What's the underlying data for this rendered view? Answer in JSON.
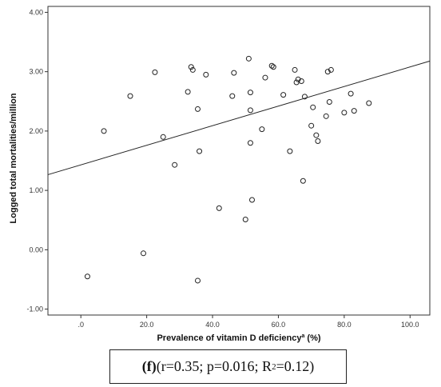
{
  "chart_data": {
    "type": "scatter",
    "xlabel": "Prevalence of vitamin D deficiency",
    "xlabel_sup": "a",
    "xlabel_unit": "(%)",
    "ylabel": "Logged total mortalities/million",
    "xlim": [
      -10,
      106
    ],
    "ylim": [
      -1.1,
      4.1
    ],
    "x_ticks": [
      0,
      20,
      40,
      60,
      80,
      100
    ],
    "x_tick_labels": [
      ".0",
      "20.0",
      "40.0",
      "60.0",
      "80.0",
      "100.0"
    ],
    "y_ticks": [
      -1,
      0,
      1,
      2,
      3,
      4
    ],
    "y_tick_labels": [
      "-1.00",
      "0.00",
      "1.00",
      "2.00",
      "3.00",
      "4.00"
    ],
    "grid": false,
    "fit_line": {
      "slope": 0.0165,
      "intercept": 1.43
    },
    "points": [
      {
        "x": 2.0,
        "y": -0.45
      },
      {
        "x": 7.0,
        "y": 2.0
      },
      {
        "x": 15.0,
        "y": 2.59
      },
      {
        "x": 19.0,
        "y": -0.06
      },
      {
        "x": 22.5,
        "y": 2.99
      },
      {
        "x": 25.0,
        "y": 1.9
      },
      {
        "x": 28.5,
        "y": 1.43
      },
      {
        "x": 32.5,
        "y": 2.66
      },
      {
        "x": 33.5,
        "y": 3.08
      },
      {
        "x": 34.0,
        "y": 3.03
      },
      {
        "x": 35.5,
        "y": 2.37
      },
      {
        "x": 35.5,
        "y": -0.52
      },
      {
        "x": 36.0,
        "y": 1.66
      },
      {
        "x": 38.0,
        "y": 2.95
      },
      {
        "x": 42.0,
        "y": 0.7
      },
      {
        "x": 46.0,
        "y": 2.59
      },
      {
        "x": 46.5,
        "y": 2.98
      },
      {
        "x": 50.0,
        "y": 0.51
      },
      {
        "x": 51.0,
        "y": 3.22
      },
      {
        "x": 51.5,
        "y": 1.8
      },
      {
        "x": 51.5,
        "y": 2.65
      },
      {
        "x": 51.5,
        "y": 2.35
      },
      {
        "x": 52.0,
        "y": 0.84
      },
      {
        "x": 55.0,
        "y": 2.03
      },
      {
        "x": 56.0,
        "y": 2.9
      },
      {
        "x": 58.0,
        "y": 3.1
      },
      {
        "x": 58.5,
        "y": 3.08
      },
      {
        "x": 61.5,
        "y": 2.61
      },
      {
        "x": 63.5,
        "y": 1.66
      },
      {
        "x": 65.0,
        "y": 3.03
      },
      {
        "x": 65.5,
        "y": 2.82
      },
      {
        "x": 66.0,
        "y": 2.87
      },
      {
        "x": 67.0,
        "y": 2.84
      },
      {
        "x": 67.5,
        "y": 1.16
      },
      {
        "x": 68.0,
        "y": 2.58
      },
      {
        "x": 70.0,
        "y": 2.09
      },
      {
        "x": 70.5,
        "y": 2.4
      },
      {
        "x": 71.5,
        "y": 1.93
      },
      {
        "x": 72.0,
        "y": 1.83
      },
      {
        "x": 74.5,
        "y": 2.25
      },
      {
        "x": 75.0,
        "y": 3.0
      },
      {
        "x": 75.5,
        "y": 2.49
      },
      {
        "x": 76.0,
        "y": 3.03
      },
      {
        "x": 80.0,
        "y": 2.31
      },
      {
        "x": 82.0,
        "y": 2.63
      },
      {
        "x": 83.0,
        "y": 2.34
      },
      {
        "x": 87.5,
        "y": 2.47
      }
    ]
  },
  "caption": {
    "panel": "(f)",
    "stats": " (r=0.35; p=0.016; R",
    "sup": "2",
    "tail": "=0.12)"
  }
}
